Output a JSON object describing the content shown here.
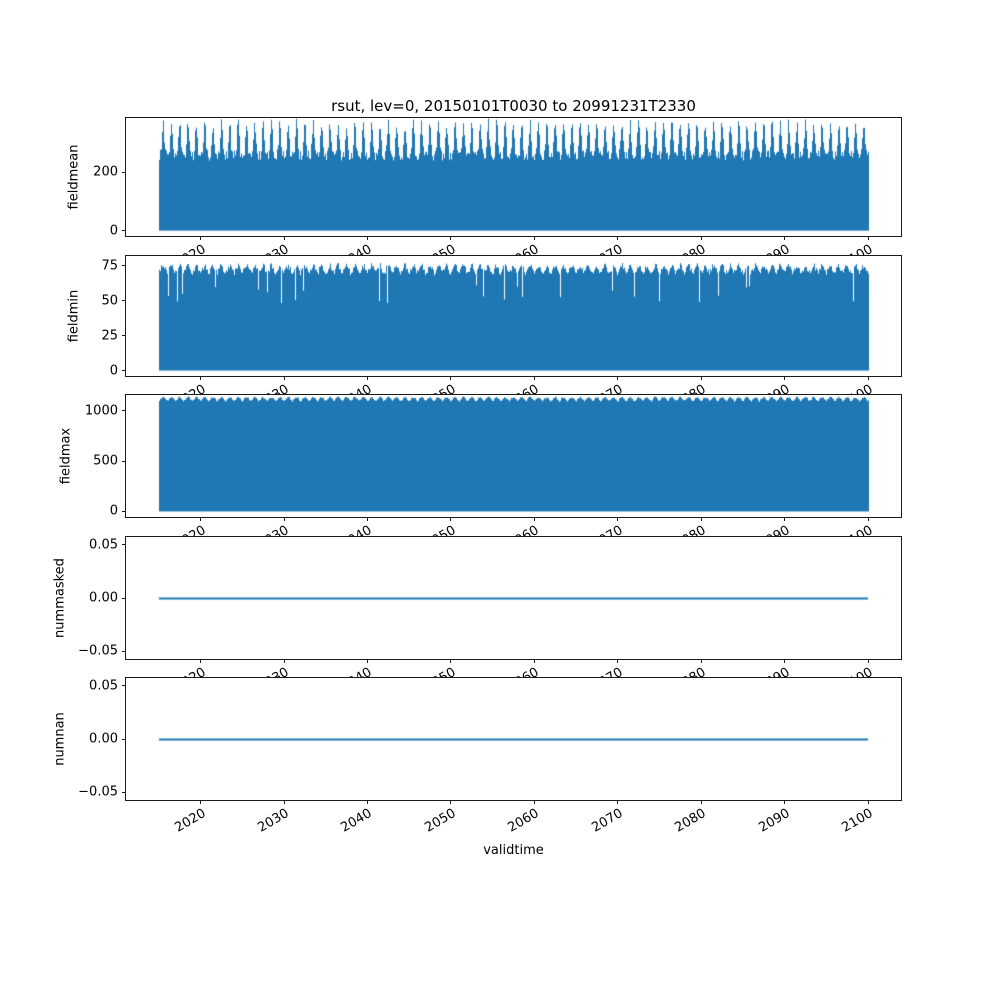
{
  "figure": {
    "title": "rsut, lev=0, 20150101T0030 to 20991231T2330",
    "xlabel": "validtime",
    "line_color": "#1f77b4",
    "background_color": "#ffffff"
  },
  "x_axis": {
    "label": "validtime",
    "lim": [
      2011.05,
      2103.95
    ],
    "data_range": [
      2015.0,
      2100.0
    ],
    "ticks": [
      2020,
      2030,
      2040,
      2050,
      2060,
      2070,
      2080,
      2090,
      2100
    ],
    "tick_labels": [
      "2020",
      "2030",
      "2040",
      "2050",
      "2060",
      "2070",
      "2080",
      "2090",
      "2100"
    ],
    "tick_rotation_deg": 30
  },
  "chart_data": [
    {
      "type": "line",
      "panel": 1,
      "ylabel": "fieldmean",
      "ytick_values": [
        0,
        200
      ],
      "ytick_labels": [
        "0",
        "200"
      ],
      "ylim": [
        -18.3,
        384.3
      ],
      "render": "dense-fill",
      "fill_low": 0,
      "top_min": 256,
      "top_max": 366,
      "noise": 17,
      "peak_sharpness": 3,
      "description": "Field mean of rsut, high-frequency series 2015-2100 oscillating between 0 and ~366 with annual peaks; rendered as solid band"
    },
    {
      "type": "line",
      "panel": 2,
      "ylabel": "fieldmin",
      "ytick_values": [
        0,
        25,
        50,
        75
      ],
      "ytick_labels": [
        "0",
        "25",
        "50",
        "75"
      ],
      "ylim": [
        -3.9,
        81.9
      ],
      "render": "dense-fill",
      "fill_low": 0,
      "top_min": 70,
      "top_max": 75,
      "dip_min": 48,
      "dip_probability": 0.045,
      "noise": 2,
      "peak_sharpness": 1,
      "description": "Field minimum of rsut oscillating between 0 and ~75 with sporadic envelope dips to ~50"
    },
    {
      "type": "line",
      "panel": 3,
      "ylabel": "fieldmax",
      "ytick_values": [
        0,
        500,
        1000
      ],
      "ytick_labels": [
        "0",
        "500",
        "1000"
      ],
      "ylim": [
        -55,
        1155
      ],
      "render": "dense-fill",
      "fill_low": 0,
      "top_min": 1095,
      "top_max": 1133,
      "noise": 8,
      "peak_sharpness": 0.7,
      "description": "Field maximum of rsut oscillating between 0 and ~1130 over 2015-2100"
    },
    {
      "type": "line",
      "panel": 4,
      "ylabel": "nummasked",
      "ytick_values": [
        -0.05,
        0,
        0.05
      ],
      "ytick_labels": [
        "−0.05",
        "0.00",
        "0.05"
      ],
      "ylim": [
        -0.0575,
        0.0575
      ],
      "render": "flat-line",
      "value": 0.0,
      "description": "Number of masked values, constant 0 for entire period"
    },
    {
      "type": "line",
      "panel": 5,
      "ylabel": "numnan",
      "ytick_values": [
        -0.05,
        0,
        0.05
      ],
      "ytick_labels": [
        "−0.05",
        "0.00",
        "0.05"
      ],
      "ylim": [
        -0.0575,
        0.0575
      ],
      "render": "flat-line",
      "value": 0.0,
      "description": "Number of NaN values, constant 0 for entire period"
    }
  ]
}
